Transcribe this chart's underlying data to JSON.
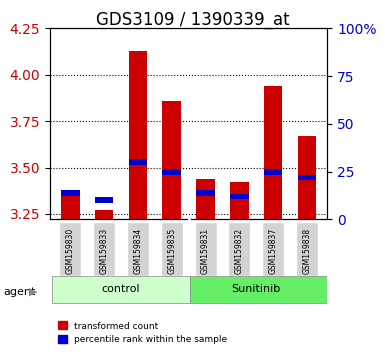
{
  "title": "GDS3109 / 1390339_at",
  "samples": [
    "GSM159830",
    "GSM159833",
    "GSM159834",
    "GSM159835",
    "GSM159831",
    "GSM159832",
    "GSM159837",
    "GSM159838"
  ],
  "groups": [
    "control",
    "control",
    "control",
    "control",
    "Sunitinib",
    "Sunitinib",
    "Sunitinib",
    "Sunitinib"
  ],
  "transformed_count": [
    3.38,
    3.27,
    4.13,
    3.86,
    3.44,
    3.42,
    3.94,
    3.67
  ],
  "percentile_rank": [
    14,
    10,
    30,
    25,
    14,
    12,
    25,
    22
  ],
  "bar_bottom": 3.22,
  "ylim": [
    3.22,
    4.25
  ],
  "y2lim": [
    0,
    100
  ],
  "yticks": [
    3.25,
    3.5,
    3.75,
    4.0,
    4.25
  ],
  "y2ticks": [
    0,
    25,
    50,
    75,
    100
  ],
  "red_color": "#cc0000",
  "blue_color": "#0000cc",
  "control_bg": "#ccffcc",
  "sunitinib_bg": "#66ee66",
  "legend_red": "transformed count",
  "legend_blue": "percentile rank within the sample",
  "agent_label": "agent",
  "group_labels": [
    "control",
    "Sunitinib"
  ],
  "group_positions": [
    1.5,
    5.5
  ],
  "title_fontsize": 12,
  "axis_bg": "#ffffff",
  "bar_width": 0.55
}
